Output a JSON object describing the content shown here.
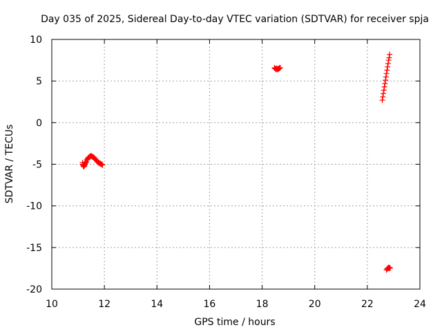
{
  "chart_data": {
    "type": "scatter",
    "title": "Day 035 of 2025, Sidereal Day-to-day VTEC variation (SDTVAR) for receiver spja",
    "xlabel": "GPS time / hours",
    "ylabel": "SDTVAR / TECUs",
    "xlim": [
      10,
      24
    ],
    "ylim": [
      -20,
      10
    ],
    "xticks": [
      "10",
      "12",
      "14",
      "16",
      "18",
      "20",
      "22",
      "24"
    ],
    "yticks": [
      "10",
      "5",
      "0",
      "-5",
      "-10",
      "-15",
      "-20"
    ],
    "xtick_values": [
      10,
      12,
      14,
      16,
      18,
      20,
      22,
      24
    ],
    "ytick_values": [
      10,
      5,
      0,
      -5,
      -10,
      -15,
      -20
    ],
    "grid": true,
    "marker": "plus",
    "color": "#ff0000",
    "series": [
      {
        "values": [
          [
            11.17,
            -4.8
          ],
          [
            11.18,
            -5.0
          ],
          [
            11.19,
            -5.1
          ],
          [
            11.2,
            -5.2
          ],
          [
            11.21,
            -5.2
          ],
          [
            11.22,
            -5.3
          ],
          [
            11.23,
            -5.2
          ],
          [
            11.24,
            -5.1
          ],
          [
            11.25,
            -5.1
          ],
          [
            11.26,
            -5.0
          ],
          [
            11.27,
            -4.9
          ],
          [
            11.29,
            -4.8
          ],
          [
            11.31,
            -4.7
          ],
          [
            11.33,
            -4.5
          ],
          [
            11.35,
            -4.4
          ],
          [
            11.37,
            -4.3
          ],
          [
            11.39,
            -4.2
          ],
          [
            11.41,
            -4.2
          ],
          [
            11.43,
            -4.1
          ],
          [
            11.45,
            -4.1
          ],
          [
            11.47,
            -4.0
          ],
          [
            11.49,
            -4.0
          ],
          [
            11.51,
            -4.0
          ],
          [
            11.53,
            -4.1
          ],
          [
            11.55,
            -4.1
          ],
          [
            11.57,
            -4.1
          ],
          [
            11.59,
            -4.2
          ],
          [
            11.61,
            -4.2
          ],
          [
            11.63,
            -4.3
          ],
          [
            11.65,
            -4.4
          ],
          [
            11.67,
            -4.4
          ],
          [
            11.69,
            -4.5
          ],
          [
            11.71,
            -4.6
          ],
          [
            11.73,
            -4.7
          ],
          [
            11.75,
            -4.7
          ],
          [
            11.77,
            -4.8
          ],
          [
            11.79,
            -4.8
          ],
          [
            11.81,
            -4.9
          ],
          [
            11.83,
            -4.9
          ],
          [
            11.85,
            -4.9
          ],
          [
            11.87,
            -5.0
          ],
          [
            11.89,
            -5.0
          ],
          [
            11.91,
            -5.0
          ],
          [
            11.93,
            -5.1
          ],
          [
            18.47,
            6.6
          ],
          [
            18.49,
            6.5
          ],
          [
            18.51,
            6.5
          ],
          [
            18.53,
            6.4
          ],
          [
            18.55,
            6.5
          ],
          [
            18.57,
            6.4
          ],
          [
            18.59,
            6.5
          ],
          [
            18.61,
            6.4
          ],
          [
            18.63,
            6.5
          ],
          [
            18.65,
            6.5
          ],
          [
            18.67,
            6.6
          ],
          [
            18.69,
            6.6
          ],
          [
            22.57,
            2.7
          ],
          [
            22.59,
            3.1
          ],
          [
            22.61,
            3.5
          ],
          [
            22.63,
            3.9
          ],
          [
            22.65,
            4.3
          ],
          [
            22.67,
            4.7
          ],
          [
            22.69,
            5.1
          ],
          [
            22.71,
            5.5
          ],
          [
            22.73,
            5.9
          ],
          [
            22.75,
            6.3
          ],
          [
            22.77,
            6.7
          ],
          [
            22.79,
            7.1
          ],
          [
            22.81,
            7.5
          ],
          [
            22.83,
            7.8
          ],
          [
            22.85,
            8.2
          ],
          [
            22.73,
            -17.7
          ],
          [
            22.75,
            -17.6
          ],
          [
            22.77,
            -17.5
          ],
          [
            22.79,
            -17.5
          ],
          [
            22.81,
            -17.4
          ],
          [
            22.83,
            -17.5
          ],
          [
            22.85,
            -17.4
          ],
          [
            22.87,
            -17.5
          ]
        ]
      }
    ]
  }
}
